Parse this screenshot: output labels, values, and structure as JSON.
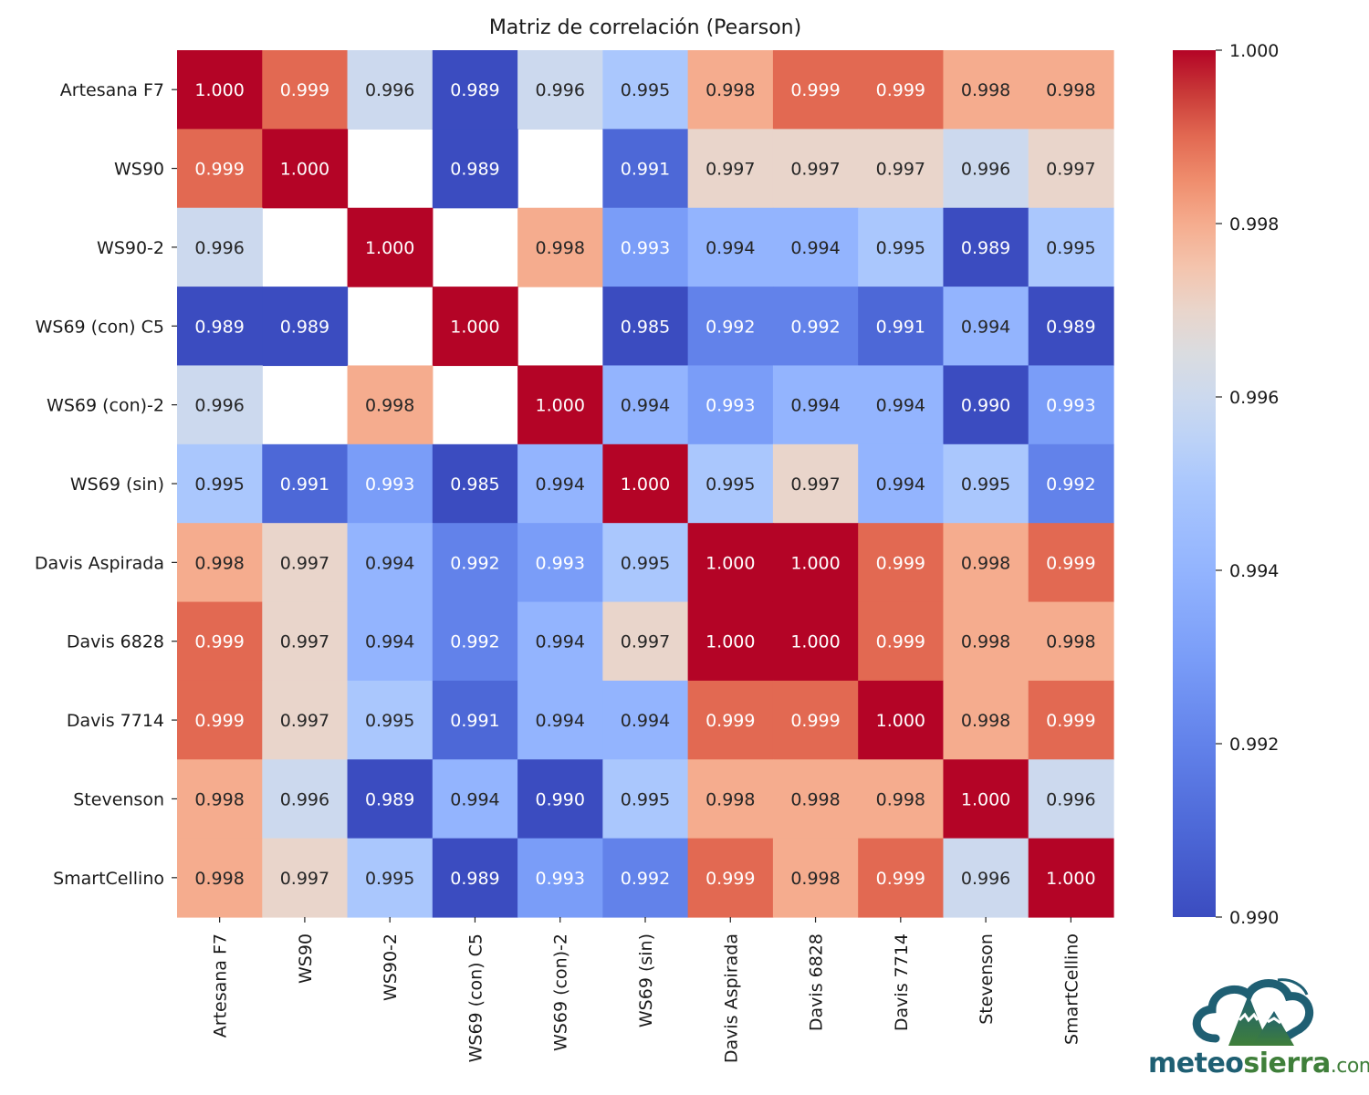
{
  "chart_data": {
    "type": "heatmap",
    "title": "Matriz de correlación (Pearson)",
    "xlabel": "",
    "ylabel": "",
    "colormap": "coolwarm",
    "vmin": 0.99,
    "vmax": 1.0,
    "value_format": "0.000",
    "row_labels": [
      "Artesana F7",
      "WS90",
      "WS90-2",
      "WS69 (con) C5",
      "WS69 (con)-2",
      "WS69 (sin)",
      "Davis Aspirada",
      "Davis 6828",
      "Davis 7714",
      "Stevenson",
      "SmartCellino"
    ],
    "col_labels": [
      "Artesana F7",
      "WS90",
      "WS90-2",
      "WS69 (con) C5",
      "WS69 (con)-2",
      "WS69 (sin)",
      "Davis Aspirada",
      "Davis 6828",
      "Davis 7714",
      "Stevenson",
      "SmartCellino"
    ],
    "values": [
      [
        1.0,
        0.999,
        0.996,
        0.989,
        0.996,
        0.995,
        0.998,
        0.999,
        0.999,
        0.998,
        0.998
      ],
      [
        0.999,
        1.0,
        null,
        0.989,
        null,
        0.991,
        0.997,
        0.997,
        0.997,
        0.996,
        0.997
      ],
      [
        0.996,
        null,
        1.0,
        null,
        0.998,
        0.993,
        0.994,
        0.994,
        0.995,
        0.989,
        0.995
      ],
      [
        0.989,
        0.989,
        null,
        1.0,
        null,
        0.985,
        0.992,
        0.992,
        0.991,
        0.994,
        0.989
      ],
      [
        0.996,
        null,
        0.998,
        null,
        1.0,
        0.994,
        0.993,
        0.994,
        0.994,
        0.99,
        0.993
      ],
      [
        0.995,
        0.991,
        0.993,
        0.985,
        0.994,
        1.0,
        0.995,
        0.997,
        0.994,
        0.995,
        0.992
      ],
      [
        0.998,
        0.997,
        0.994,
        0.992,
        0.993,
        0.995,
        1.0,
        1.0,
        0.999,
        0.998,
        0.999
      ],
      [
        0.999,
        0.997,
        0.994,
        0.992,
        0.994,
        0.997,
        1.0,
        1.0,
        0.999,
        0.998,
        0.998
      ],
      [
        0.999,
        0.997,
        0.995,
        0.991,
        0.994,
        0.994,
        0.999,
        0.999,
        1.0,
        0.998,
        0.999
      ],
      [
        0.998,
        0.996,
        0.989,
        0.994,
        0.99,
        0.995,
        0.998,
        0.998,
        0.998,
        1.0,
        0.996
      ],
      [
        0.998,
        0.997,
        0.995,
        0.989,
        0.993,
        0.992,
        0.999,
        0.998,
        0.999,
        0.996,
        1.0
      ]
    ],
    "colorbar": {
      "ticks": [
        0.99,
        0.992,
        0.994,
        0.996,
        0.998,
        1.0
      ],
      "tick_labels": [
        "0.990",
        "0.992",
        "0.994",
        "0.996",
        "0.998",
        "1.000"
      ],
      "placement": "right"
    },
    "grid": false,
    "legend": "none"
  },
  "logo": {
    "part1": "meteo",
    "part2": "sierra",
    "part3": ".com",
    "colors": {
      "teal": "#1f5f73",
      "green": "#3f7f3a"
    }
  }
}
